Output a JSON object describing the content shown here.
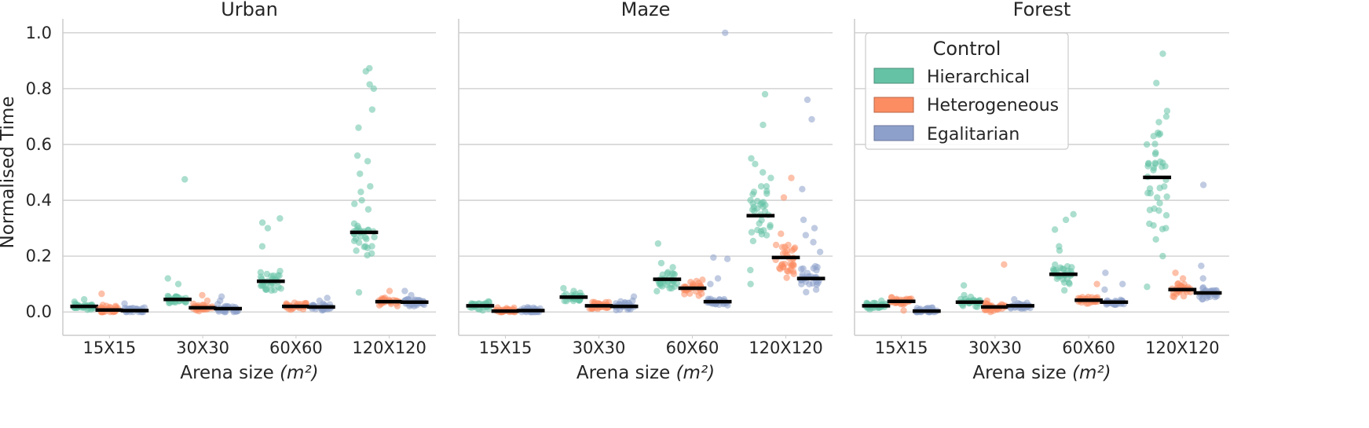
{
  "chart_data": [
    {
      "type": "strip",
      "title": "Urban",
      "xlabel": "Arena size",
      "xlabel_unit": "(m²)",
      "ylabel": "Normalised Time",
      "categories": [
        "15X15",
        "30X30",
        "60X60",
        "120X120"
      ],
      "medians": {
        "Hierarchical": [
          0.02,
          0.045,
          0.11,
          0.285
        ],
        "Heterogeneous": [
          0.007,
          0.015,
          0.02,
          0.037
        ],
        "Egalitarian": [
          0.005,
          0.012,
          0.018,
          0.035
        ]
      },
      "outliers": {
        "Hierarchical": [
          [
            0.045,
            0.03
          ],
          [
            0.475,
            0.12,
            0.1
          ],
          [
            0.335,
            0.32,
            0.3,
            0.235
          ],
          [
            0.873,
            0.862,
            0.815,
            0.8,
            0.725,
            0.66,
            0.56,
            0.54,
            0.495,
            0.45,
            0.43,
            0.4,
            0.07
          ]
        ],
        "Heterogeneous": [
          [
            0.065,
            0.025
          ],
          [
            0.06,
            0.04
          ],
          [
            0.03
          ],
          [
            0.075
          ]
        ],
        "Egalitarian": [
          [
            0.03
          ],
          [
            0.055,
            0.04
          ],
          [
            0.05,
            0.04
          ],
          [
            0.075,
            0.06
          ]
        ]
      }
    },
    {
      "type": "strip",
      "title": "Maze",
      "xlabel": "Arena size",
      "xlabel_unit": "(m²)",
      "categories": [
        "15X15",
        "30X30",
        "60X60",
        "120X120"
      ],
      "medians": {
        "Hierarchical": [
          0.022,
          0.053,
          0.117,
          0.345
        ],
        "Heterogeneous": [
          0.003,
          0.022,
          0.085,
          0.195
        ],
        "Egalitarian": [
          0.005,
          0.02,
          0.037,
          0.12
        ]
      },
      "outliers": {
        "Hierarchical": [
          [
            0.03
          ],
          [
            0.085,
            0.075
          ],
          [
            0.245,
            0.175,
            0.16
          ],
          [
            0.78,
            0.67,
            0.55,
            0.53,
            0.5,
            0.48,
            0.45,
            0.43,
            0.15,
            0.1
          ]
        ],
        "Heterogeneous": [
          [
            0.015
          ],
          [
            0.035
          ],
          [
            0.115,
            0.1
          ],
          [
            0.48,
            0.41,
            0.28,
            0.24,
            0.16,
            0.145
          ]
        ],
        "Egalitarian": [
          [
            0.015
          ],
          [
            0.055,
            0.04
          ],
          [
            1.0,
            0.195,
            0.19,
            0.12,
            0.1
          ],
          [
            0.76,
            0.69,
            0.44,
            0.33,
            0.3,
            0.275,
            0.25,
            0.215
          ]
        ]
      }
    },
    {
      "type": "strip",
      "title": "Forest",
      "xlabel": "Arena size",
      "xlabel_unit": "(m²)",
      "categories": [
        "15X15",
        "30X30",
        "60X60",
        "120X120"
      ],
      "medians": {
        "Hierarchical": [
          0.022,
          0.035,
          0.135,
          0.482
        ],
        "Heterogeneous": [
          0.038,
          0.018,
          0.042,
          0.08
        ],
        "Egalitarian": [
          0.003,
          0.022,
          0.035,
          0.068
        ]
      },
      "outliers": {
        "Hierarchical": [
          [
            0.04
          ],
          [
            0.095,
            0.06
          ],
          [
            0.35,
            0.33,
            0.295,
            0.235,
            0.22
          ],
          [
            0.925,
            0.82,
            0.72,
            0.7,
            0.68,
            0.63,
            0.6,
            0.52,
            0.41,
            0.37,
            0.31,
            0.3,
            0.26,
            0.2,
            0.09
          ]
        ],
        "Heterogeneous": [
          [
            0.005
          ],
          [
            0.17,
            0.04
          ],
          [
            0.1
          ],
          [
            0.14,
            0.12
          ]
        ],
        "Egalitarian": [
          [
            0.015
          ],
          [
            0.045
          ],
          [
            0.14,
            0.1,
            0.08
          ],
          [
            0.455,
            0.165,
            0.12
          ]
        ]
      }
    }
  ],
  "y_axis": {
    "range": [
      -0.05,
      1.05
    ],
    "ticks": [
      "0.0",
      "0.2",
      "0.4",
      "0.6",
      "0.8",
      "1.0"
    ],
    "grid": true
  },
  "legend": {
    "title": "Control",
    "position": "upper-right of Forest panel",
    "entries": [
      {
        "label": "Hierarchical",
        "color": "#66c2a5"
      },
      {
        "label": "Heterogeneous",
        "color": "#fc8d62"
      },
      {
        "label": "Egalitarian",
        "color": "#8da0cb"
      }
    ]
  }
}
